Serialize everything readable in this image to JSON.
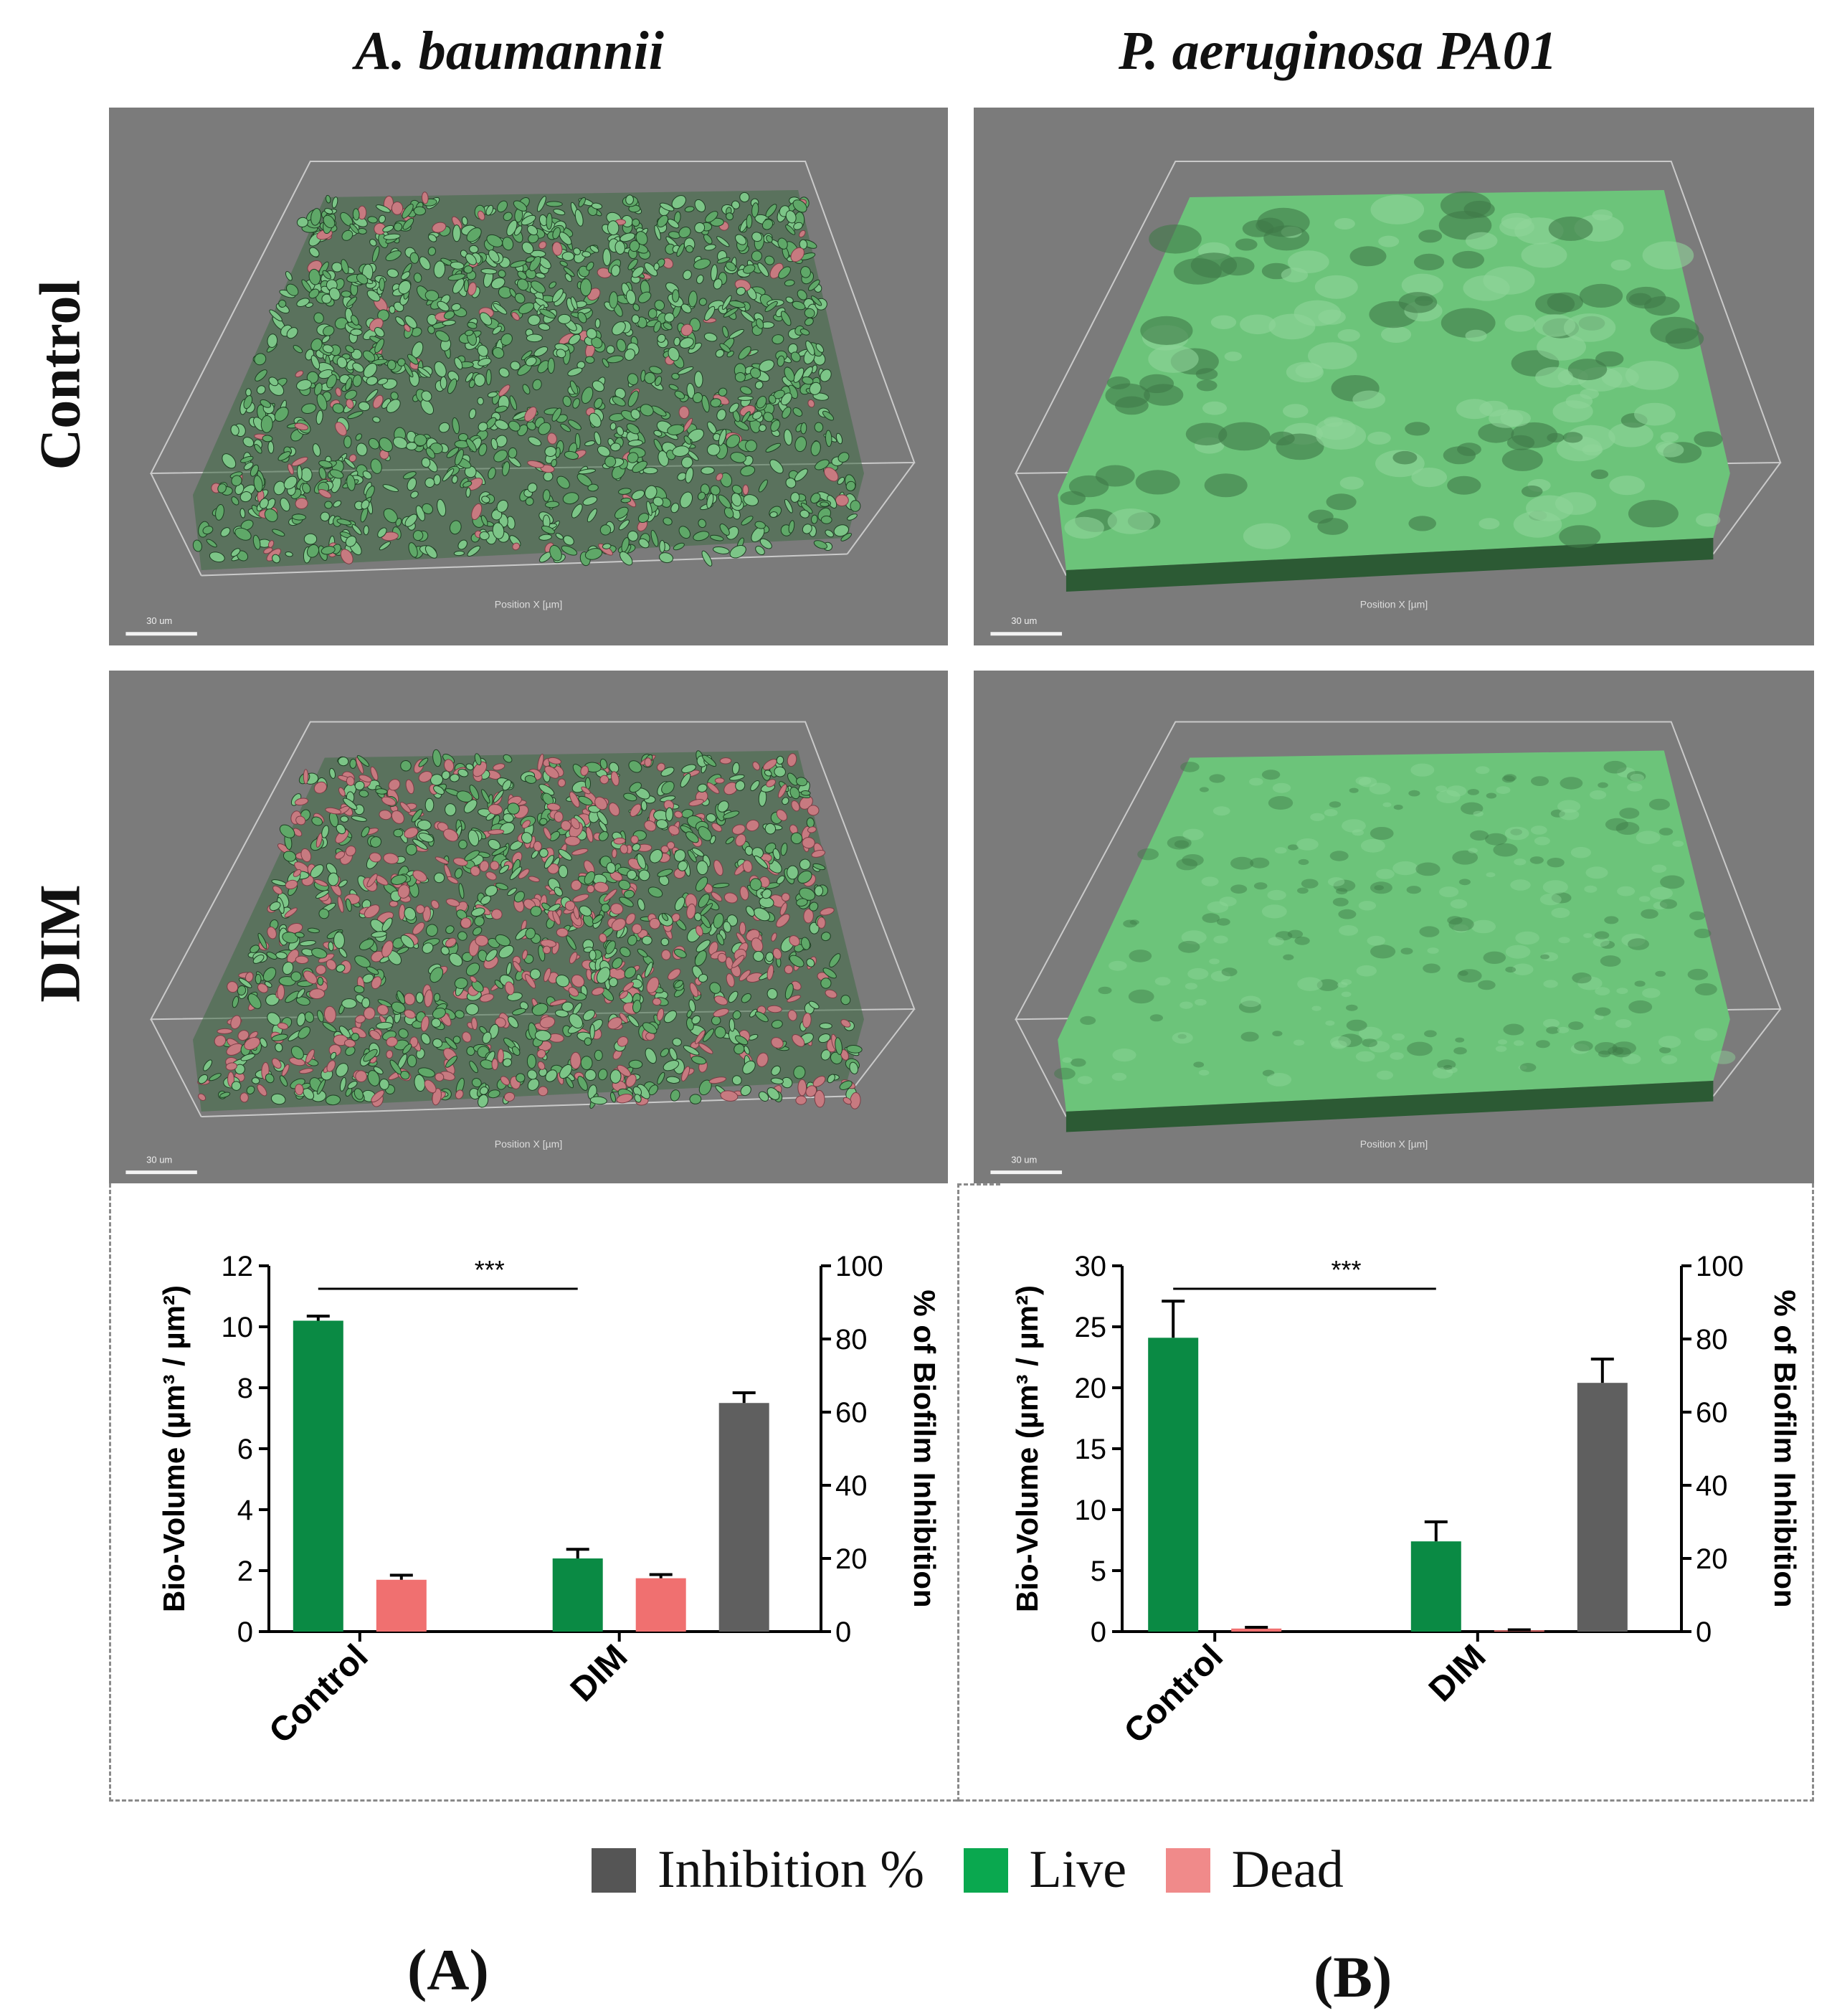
{
  "columns": [
    "A. baumannii",
    "P. aeruginosa PA01"
  ],
  "rows": [
    "Control",
    "DIM"
  ],
  "panels": [
    {
      "id": "ab-control",
      "scale_label": "30 um",
      "axis_label": "Position X [µm]",
      "style": "speckle",
      "dead_density": 0.07
    },
    {
      "id": "pa-control",
      "scale_label": "30 um",
      "axis_label": "Position X [µm]",
      "style": "bumpy"
    },
    {
      "id": "ab-dim",
      "scale_label": "30 um",
      "axis_label": "Position X [µm]",
      "style": "speckle",
      "dead_density": 0.38
    },
    {
      "id": "pa-dim",
      "scale_label": "30 um",
      "axis_label": "Position X [µm]",
      "style": "smooth"
    }
  ],
  "colors": {
    "live": "#0a8a44",
    "dead": "#f07070",
    "inhibition": "#5f5f5f",
    "scan_bg": "#7b7b7b",
    "biofilm": "#6cc47a",
    "biofilm_dark": "#2c5a34"
  },
  "chart_data": [
    {
      "type": "bar",
      "categories": [
        "Control",
        "DIM"
      ],
      "ylabel": "Bio-Volume (µm³ / µm²)",
      "y2label": "% of Biofilm Inhibition",
      "ylim": [
        0,
        12
      ],
      "yticks": [
        0,
        2,
        4,
        6,
        8,
        10,
        12
      ],
      "y2lim": [
        0,
        100
      ],
      "y2ticks": [
        0,
        20,
        40,
        60,
        80,
        100
      ],
      "series": [
        {
          "name": "Live",
          "axis": "left",
          "values": [
            10.2,
            2.4
          ],
          "errors": [
            0.15,
            0.3
          ]
        },
        {
          "name": "Dead",
          "axis": "left",
          "values": [
            1.7,
            1.75
          ],
          "errors": [
            0.15,
            0.12
          ]
        },
        {
          "name": "Inhibition %",
          "axis": "right",
          "values": [
            null,
            62.5
          ],
          "errors": [
            null,
            2.8
          ]
        }
      ],
      "significance": "***"
    },
    {
      "type": "bar",
      "categories": [
        "Control",
        "DIM"
      ],
      "ylabel": "Bio-Volume (µm³ / µm²)",
      "y2label": "% of Biofilm Inhibition",
      "ylim": [
        0,
        30
      ],
      "yticks": [
        0,
        5,
        10,
        15,
        20,
        25,
        30
      ],
      "y2lim": [
        0,
        100
      ],
      "y2ticks": [
        0,
        20,
        40,
        60,
        80,
        100
      ],
      "series": [
        {
          "name": "Live",
          "axis": "left",
          "values": [
            24.1,
            7.4
          ],
          "errors": [
            3.0,
            1.6
          ]
        },
        {
          "name": "Dead",
          "axis": "left",
          "values": [
            0.25,
            0.1
          ],
          "errors": [
            0.1,
            0.05
          ]
        },
        {
          "name": "Inhibition %",
          "axis": "right",
          "values": [
            null,
            68
          ],
          "errors": [
            null,
            6.5
          ]
        }
      ],
      "significance": "***"
    }
  ],
  "legend": [
    {
      "label": "Inhibition %",
      "color": "#555555"
    },
    {
      "label": "Live",
      "color": "#0aa84f"
    },
    {
      "label": "Dead",
      "color": "#f08a8a"
    }
  ],
  "subfigure_labels": [
    "(A)",
    "(B)"
  ]
}
